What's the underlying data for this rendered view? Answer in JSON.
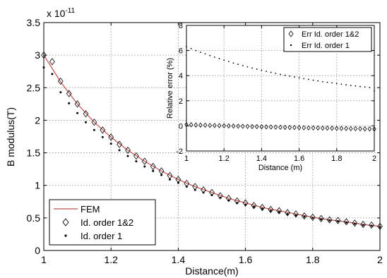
{
  "chart_data": [
    {
      "type": "scatter",
      "title": "",
      "xlabel": "Distance(m)",
      "ylabel": "B modulus(T)",
      "y_exponent_label": "x 10",
      "y_exponent_power": "-11",
      "xlim": [
        1,
        2
      ],
      "ylim": [
        0,
        3.5
      ],
      "xticks": [
        "1",
        "1.2",
        "1.4",
        "1.6",
        "1.8",
        "2"
      ],
      "yticks": [
        "0",
        "0.5",
        "1",
        "1.5",
        "2",
        "2.5",
        "3",
        "3.5"
      ],
      "grid": true,
      "legend_position": "bottom-left",
      "series": [
        {
          "name": "FEM",
          "style": "line",
          "color": "#c0504d",
          "x": [
            1.0,
            1.05,
            1.1,
            1.15,
            1.2,
            1.25,
            1.3,
            1.35,
            1.4,
            1.45,
            1.5,
            1.55,
            1.6,
            1.65,
            1.7,
            1.75,
            1.8,
            1.85,
            1.9,
            1.95,
            2.0
          ],
          "y": [
            3.0,
            2.59,
            2.25,
            1.97,
            1.74,
            1.54,
            1.37,
            1.22,
            1.09,
            0.98,
            0.89,
            0.8,
            0.73,
            0.66,
            0.61,
            0.56,
            0.51,
            0.47,
            0.44,
            0.4,
            0.37
          ]
        },
        {
          "name": "Id. order 1&2",
          "style": "diamond",
          "color": "#000000",
          "x": [
            1.0,
            1.025,
            1.05,
            1.075,
            1.1,
            1.125,
            1.15,
            1.175,
            1.2,
            1.225,
            1.25,
            1.275,
            1.3,
            1.325,
            1.35,
            1.375,
            1.4,
            1.425,
            1.45,
            1.475,
            1.5,
            1.525,
            1.55,
            1.575,
            1.6,
            1.625,
            1.65,
            1.675,
            1.7,
            1.725,
            1.75,
            1.775,
            1.8,
            1.825,
            1.85,
            1.875,
            1.9,
            1.925,
            1.95,
            1.975,
            2.0
          ],
          "y": [
            3.0,
            2.9,
            2.6,
            2.41,
            2.25,
            2.1,
            1.97,
            1.85,
            1.74,
            1.63,
            1.54,
            1.45,
            1.37,
            1.29,
            1.22,
            1.15,
            1.09,
            1.03,
            0.98,
            0.93,
            0.89,
            0.84,
            0.8,
            0.76,
            0.73,
            0.69,
            0.66,
            0.63,
            0.61,
            0.58,
            0.56,
            0.53,
            0.51,
            0.49,
            0.47,
            0.46,
            0.44,
            0.42,
            0.4,
            0.39,
            0.37
          ]
        },
        {
          "name": "Id. order 1",
          "style": "dot",
          "color": "#000000",
          "x": [
            1.0,
            1.025,
            1.05,
            1.075,
            1.1,
            1.125,
            1.15,
            1.175,
            1.2,
            1.225,
            1.25,
            1.275,
            1.3,
            1.325,
            1.35,
            1.375,
            1.4,
            1.425,
            1.45,
            1.475,
            1.5,
            1.525,
            1.55,
            1.575,
            1.6,
            1.625,
            1.65,
            1.675,
            1.7,
            1.725,
            1.75,
            1.775,
            1.8,
            1.825,
            1.85,
            1.875,
            1.9,
            1.925,
            1.95,
            1.975,
            2.0
          ],
          "y": [
            2.81,
            2.71,
            2.43,
            2.26,
            2.11,
            1.97,
            1.85,
            1.74,
            1.64,
            1.54,
            1.45,
            1.37,
            1.29,
            1.22,
            1.16,
            1.09,
            1.04,
            0.98,
            0.93,
            0.89,
            0.85,
            0.81,
            0.77,
            0.73,
            0.7,
            0.67,
            0.64,
            0.61,
            0.59,
            0.56,
            0.54,
            0.52,
            0.5,
            0.48,
            0.46,
            0.45,
            0.43,
            0.41,
            0.39,
            0.38,
            0.36
          ]
        }
      ]
    },
    {
      "type": "scatter",
      "title": "",
      "xlabel": "Distance (m)",
      "ylabel": "Relative error (%)",
      "xlim": [
        1,
        2
      ],
      "ylim": [
        -2,
        8
      ],
      "xticks": [
        "1",
        "1.2",
        "1.4",
        "1.6",
        "1.8",
        "2"
      ],
      "yticks": [
        "-2",
        "0",
        "2",
        "4",
        "6",
        "8"
      ],
      "grid": true,
      "legend_position": "top-right",
      "series": [
        {
          "name": "Err Id. order 1&2",
          "style": "diamond",
          "color": "#000000",
          "x": [
            1.0,
            1.025,
            1.05,
            1.075,
            1.1,
            1.125,
            1.15,
            1.175,
            1.2,
            1.225,
            1.25,
            1.275,
            1.3,
            1.325,
            1.35,
            1.375,
            1.4,
            1.425,
            1.45,
            1.475,
            1.5,
            1.525,
            1.55,
            1.575,
            1.6,
            1.625,
            1.65,
            1.675,
            1.7,
            1.725,
            1.75,
            1.775,
            1.8,
            1.825,
            1.85,
            1.875,
            1.9,
            1.925,
            1.95,
            1.975,
            2.0
          ],
          "y": [
            0.1,
            0.09,
            0.07,
            0.06,
            0.05,
            0.04,
            0.03,
            0.02,
            0.01,
            0.0,
            -0.01,
            -0.02,
            -0.03,
            -0.04,
            -0.05,
            -0.06,
            -0.07,
            -0.08,
            -0.09,
            -0.1,
            -0.11,
            -0.12,
            -0.13,
            -0.13,
            -0.14,
            -0.15,
            -0.16,
            -0.16,
            -0.17,
            -0.18,
            -0.18,
            -0.19,
            -0.2,
            -0.2,
            -0.21,
            -0.22,
            -0.22,
            -0.23,
            -0.24,
            -0.24,
            -0.25
          ]
        },
        {
          "name": "Err Id. order 1",
          "style": "dot",
          "color": "#000000",
          "x": [
            1.0,
            1.025,
            1.05,
            1.075,
            1.1,
            1.125,
            1.15,
            1.175,
            1.2,
            1.225,
            1.25,
            1.275,
            1.3,
            1.325,
            1.35,
            1.375,
            1.4,
            1.425,
            1.45,
            1.475,
            1.5,
            1.525,
            1.55,
            1.575,
            1.6,
            1.625,
            1.65,
            1.675,
            1.7,
            1.725,
            1.75,
            1.775,
            1.8,
            1.825,
            1.85,
            1.875,
            1.9,
            1.925,
            1.95,
            1.975,
            2.0
          ],
          "y": [
            6.3,
            6.15,
            6.0,
            5.86,
            5.73,
            5.6,
            5.47,
            5.35,
            5.23,
            5.12,
            5.01,
            4.9,
            4.8,
            4.7,
            4.61,
            4.52,
            4.43,
            4.34,
            4.26,
            4.18,
            4.1,
            4.03,
            3.96,
            3.89,
            3.82,
            3.76,
            3.7,
            3.64,
            3.58,
            3.52,
            3.47,
            3.42,
            3.37,
            3.32,
            3.27,
            3.22,
            3.18,
            3.13,
            3.09,
            3.05,
            2.78
          ]
        }
      ]
    }
  ]
}
